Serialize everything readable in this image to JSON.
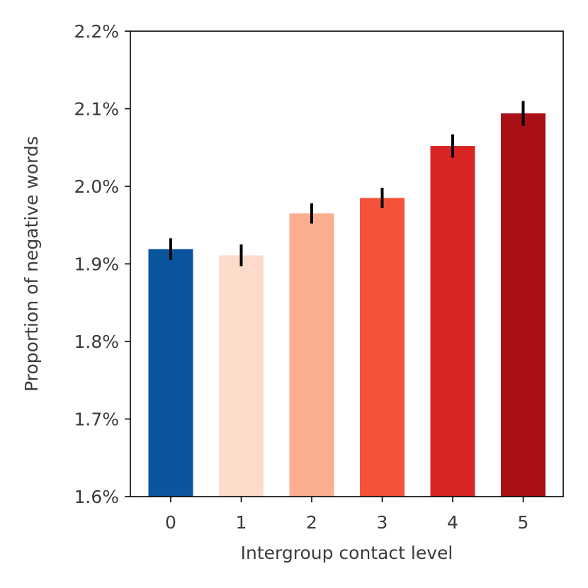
{
  "chart_data": {
    "type": "bar",
    "title": "",
    "xlabel": "Intergroup contact level",
    "ylabel": "Proportion of negative words",
    "categories": [
      "0",
      "1",
      "2",
      "3",
      "4",
      "5"
    ],
    "values": [
      1.919,
      1.911,
      1.965,
      1.985,
      2.052,
      2.094
    ],
    "errors": [
      0.014,
      0.014,
      0.013,
      0.013,
      0.015,
      0.016
    ],
    "colors": [
      "#0b559f",
      "#fddbcb",
      "#fcae91",
      "#f5523a",
      "#d82422",
      "#a81016"
    ],
    "ylim": [
      1.6,
      2.2
    ],
    "yticks": [
      1.6,
      1.7,
      1.8,
      1.9,
      2.0,
      2.1,
      2.2
    ],
    "ytick_labels": [
      "1.6%",
      "1.7%",
      "1.8%",
      "1.9%",
      "2.0%",
      "2.1%",
      "2.2%"
    ],
    "grid": false,
    "error_bar_color": "#000000"
  }
}
